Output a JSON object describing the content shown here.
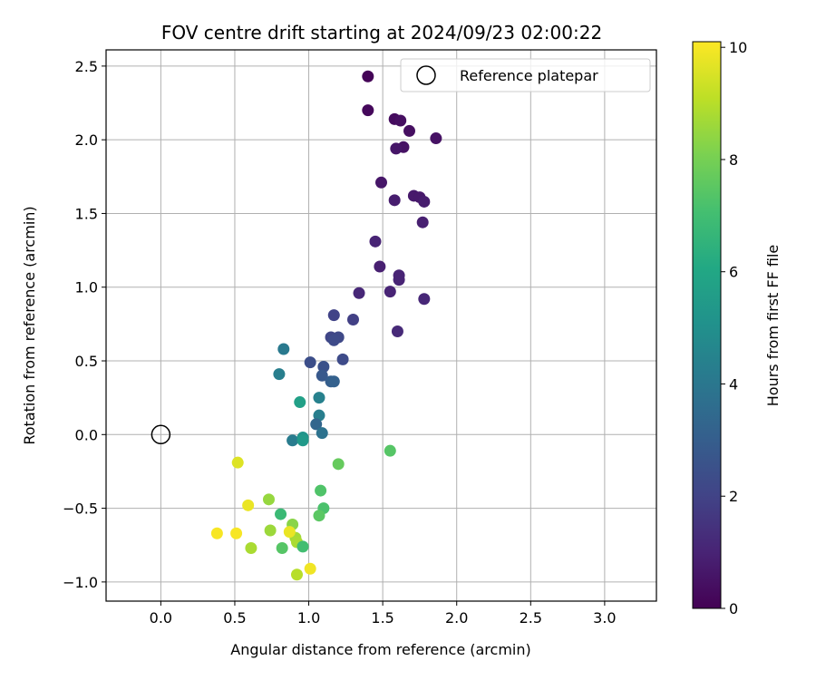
{
  "chart_data": {
    "type": "scatter",
    "title": "FOV centre drift starting at 2024/09/23 02:00:22",
    "xlabel": "Angular distance from reference (arcmin)",
    "ylabel": "Rotation from reference (arcmin)",
    "xlim": [
      -0.37,
      3.35
    ],
    "ylim": [
      -1.13,
      2.61
    ],
    "xticks": [
      0.0,
      0.5,
      1.0,
      1.5,
      2.0,
      2.5,
      3.0
    ],
    "xtick_labels": [
      "0.0",
      "0.5",
      "1.0",
      "1.5",
      "2.0",
      "2.5",
      "3.0"
    ],
    "yticks": [
      -1.0,
      -0.5,
      0.0,
      0.5,
      1.0,
      1.5,
      2.0,
      2.5
    ],
    "ytick_labels": [
      "−1.0",
      "−0.5",
      "0.0",
      "0.5",
      "1.0",
      "1.5",
      "2.0",
      "2.5"
    ],
    "grid": true,
    "legend": {
      "position": "top-right",
      "entries": [
        "Reference platepar"
      ]
    },
    "reference_point": {
      "name": "Reference platepar",
      "x": 0.0,
      "y": 0.0
    },
    "colorbar": {
      "label": "Hours from first FF file",
      "range": [
        0,
        10.1
      ],
      "ticks": [
        0,
        2,
        4,
        6,
        8,
        10
      ],
      "tick_labels": [
        "0",
        "2",
        "4",
        "6",
        "8",
        "10"
      ],
      "colormap": "viridis"
    },
    "points": [
      {
        "x": 1.4,
        "y": 2.43,
        "c": 0.1
      },
      {
        "x": 1.4,
        "y": 2.2,
        "c": 0.2
      },
      {
        "x": 1.58,
        "y": 2.14,
        "c": 0.3
      },
      {
        "x": 1.62,
        "y": 2.13,
        "c": 0.4
      },
      {
        "x": 1.68,
        "y": 2.06,
        "c": 0.4
      },
      {
        "x": 1.86,
        "y": 2.01,
        "c": 0.5
      },
      {
        "x": 1.64,
        "y": 1.95,
        "c": 0.5
      },
      {
        "x": 1.59,
        "y": 1.94,
        "c": 0.6
      },
      {
        "x": 1.49,
        "y": 1.71,
        "c": 0.6
      },
      {
        "x": 1.71,
        "y": 1.62,
        "c": 0.7
      },
      {
        "x": 1.75,
        "y": 1.61,
        "c": 0.7
      },
      {
        "x": 1.58,
        "y": 1.59,
        "c": 0.8
      },
      {
        "x": 1.78,
        "y": 1.58,
        "c": 0.8
      },
      {
        "x": 1.77,
        "y": 1.44,
        "c": 0.9
      },
      {
        "x": 1.45,
        "y": 1.31,
        "c": 1.0
      },
      {
        "x": 1.48,
        "y": 1.14,
        "c": 0.9
      },
      {
        "x": 1.61,
        "y": 1.08,
        "c": 1.0
      },
      {
        "x": 1.61,
        "y": 1.05,
        "c": 1.0
      },
      {
        "x": 1.34,
        "y": 0.96,
        "c": 1.1
      },
      {
        "x": 1.55,
        "y": 0.97,
        "c": 1.0
      },
      {
        "x": 1.78,
        "y": 0.92,
        "c": 1.1
      },
      {
        "x": 1.6,
        "y": 0.7,
        "c": 1.2
      },
      {
        "x": 1.17,
        "y": 0.81,
        "c": 2.0
      },
      {
        "x": 1.3,
        "y": 0.78,
        "c": 1.9
      },
      {
        "x": 1.15,
        "y": 0.66,
        "c": 2.1
      },
      {
        "x": 1.2,
        "y": 0.66,
        "c": 2.2
      },
      {
        "x": 1.17,
        "y": 0.64,
        "c": 2.3
      },
      {
        "x": 1.23,
        "y": 0.51,
        "c": 2.3
      },
      {
        "x": 1.01,
        "y": 0.49,
        "c": 2.4
      },
      {
        "x": 1.1,
        "y": 0.46,
        "c": 2.5
      },
      {
        "x": 1.09,
        "y": 0.4,
        "c": 2.8
      },
      {
        "x": 1.15,
        "y": 0.36,
        "c": 3.0
      },
      {
        "x": 1.17,
        "y": 0.36,
        "c": 3.1
      },
      {
        "x": 0.83,
        "y": 0.58,
        "c": 4.1
      },
      {
        "x": 0.8,
        "y": 0.41,
        "c": 4.3
      },
      {
        "x": 1.07,
        "y": 0.25,
        "c": 4.4
      },
      {
        "x": 1.07,
        "y": 0.13,
        "c": 4.3
      },
      {
        "x": 1.05,
        "y": 0.07,
        "c": 3.3
      },
      {
        "x": 1.09,
        "y": 0.01,
        "c": 3.8
      },
      {
        "x": 0.89,
        "y": -0.04,
        "c": 4.2
      },
      {
        "x": 0.96,
        "y": -0.02,
        "c": 5.2
      },
      {
        "x": 0.96,
        "y": -0.04,
        "c": 5.4
      },
      {
        "x": 0.94,
        "y": 0.22,
        "c": 5.7
      },
      {
        "x": 1.55,
        "y": -0.11,
        "c": 7.4
      },
      {
        "x": 1.2,
        "y": -0.2,
        "c": 7.7
      },
      {
        "x": 1.08,
        "y": -0.38,
        "c": 7.3
      },
      {
        "x": 1.1,
        "y": -0.5,
        "c": 7.2
      },
      {
        "x": 1.07,
        "y": -0.55,
        "c": 7.5
      },
      {
        "x": 0.81,
        "y": -0.54,
        "c": 6.8
      },
      {
        "x": 0.73,
        "y": -0.44,
        "c": 8.5
      },
      {
        "x": 0.74,
        "y": -0.65,
        "c": 8.6
      },
      {
        "x": 0.89,
        "y": -0.61,
        "c": 8.3
      },
      {
        "x": 0.91,
        "y": -0.7,
        "c": 8.7
      },
      {
        "x": 0.92,
        "y": -0.73,
        "c": 8.8
      },
      {
        "x": 0.96,
        "y": -0.76,
        "c": 7.0
      },
      {
        "x": 0.82,
        "y": -0.77,
        "c": 7.4
      },
      {
        "x": 0.61,
        "y": -0.77,
        "c": 8.8
      },
      {
        "x": 0.92,
        "y": -0.95,
        "c": 9.0
      },
      {
        "x": 1.01,
        "y": -0.91,
        "c": 9.9
      },
      {
        "x": 0.87,
        "y": -0.66,
        "c": 9.8
      },
      {
        "x": 0.52,
        "y": -0.19,
        "c": 9.6
      },
      {
        "x": 0.59,
        "y": -0.48,
        "c": 9.8
      },
      {
        "x": 0.51,
        "y": -0.67,
        "c": 10.0
      },
      {
        "x": 0.38,
        "y": -0.67,
        "c": 10.0
      }
    ]
  }
}
